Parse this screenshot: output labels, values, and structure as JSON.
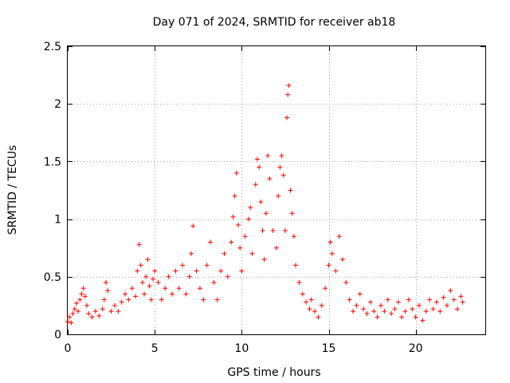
{
  "chart_data": {
    "type": "scatter",
    "title": "Day 071 of 2024, SRMTID for receiver ab18",
    "xlabel": "GPS time / hours",
    "ylabel": "SRMTID / TECUs",
    "xlim": [
      0,
      24
    ],
    "ylim": [
      0,
      2.5
    ],
    "xticks": [
      0,
      5,
      10,
      15,
      20
    ],
    "yticks": [
      0,
      0.5,
      1,
      1.5,
      2,
      2.5
    ],
    "xtick_labels": [
      "0",
      "5",
      "10",
      "15",
      "20"
    ],
    "ytick_labels": [
      "0",
      "0.5",
      "1",
      "1.5",
      "2",
      "2.5"
    ],
    "grid": true,
    "marker": "+",
    "series": [
      {
        "name": "SRMTID",
        "color": "#ff0000",
        "points": [
          [
            0.0,
            0.11
          ],
          [
            0.1,
            0.15
          ],
          [
            0.2,
            0.1
          ],
          [
            0.3,
            0.18
          ],
          [
            0.4,
            0.22
          ],
          [
            0.5,
            0.27
          ],
          [
            0.6,
            0.2
          ],
          [
            0.7,
            0.3
          ],
          [
            0.8,
            0.35
          ],
          [
            0.9,
            0.4
          ],
          [
            1.0,
            0.33
          ],
          [
            1.1,
            0.25
          ],
          [
            1.2,
            0.18
          ],
          [
            1.4,
            0.15
          ],
          [
            1.6,
            0.2
          ],
          [
            1.8,
            0.16
          ],
          [
            2.0,
            0.22
          ],
          [
            2.1,
            0.3
          ],
          [
            2.2,
            0.45
          ],
          [
            2.3,
            0.38
          ],
          [
            2.5,
            0.2
          ],
          [
            2.7,
            0.25
          ],
          [
            2.9,
            0.2
          ],
          [
            3.1,
            0.28
          ],
          [
            3.3,
            0.35
          ],
          [
            3.5,
            0.3
          ],
          [
            3.7,
            0.4
          ],
          [
            3.9,
            0.33
          ],
          [
            4.0,
            0.55
          ],
          [
            4.1,
            0.78
          ],
          [
            4.2,
            0.6
          ],
          [
            4.3,
            0.45
          ],
          [
            4.4,
            0.35
          ],
          [
            4.5,
            0.5
          ],
          [
            4.6,
            0.65
          ],
          [
            4.7,
            0.42
          ],
          [
            4.8,
            0.3
          ],
          [
            4.9,
            0.48
          ],
          [
            5.0,
            0.55
          ],
          [
            5.2,
            0.45
          ],
          [
            5.4,
            0.3
          ],
          [
            5.6,
            0.4
          ],
          [
            5.8,
            0.5
          ],
          [
            6.0,
            0.35
          ],
          [
            6.2,
            0.55
          ],
          [
            6.4,
            0.4
          ],
          [
            6.6,
            0.6
          ],
          [
            6.8,
            0.35
          ],
          [
            7.0,
            0.5
          ],
          [
            7.1,
            0.7
          ],
          [
            7.2,
            0.94
          ],
          [
            7.4,
            0.55
          ],
          [
            7.6,
            0.4
          ],
          [
            7.8,
            0.3
          ],
          [
            8.0,
            0.6
          ],
          [
            8.2,
            0.8
          ],
          [
            8.4,
            0.45
          ],
          [
            8.6,
            0.3
          ],
          [
            8.8,
            0.55
          ],
          [
            9.0,
            0.7
          ],
          [
            9.2,
            0.5
          ],
          [
            9.4,
            0.8
          ],
          [
            9.5,
            1.02
          ],
          [
            9.6,
            1.2
          ],
          [
            9.7,
            1.4
          ],
          [
            9.8,
            0.95
          ],
          [
            9.9,
            0.75
          ],
          [
            10.0,
            0.55
          ],
          [
            10.2,
            0.85
          ],
          [
            10.4,
            1.0
          ],
          [
            10.5,
            1.1
          ],
          [
            10.6,
            0.7
          ],
          [
            10.8,
            1.3
          ],
          [
            10.9,
            1.52
          ],
          [
            11.0,
            1.45
          ],
          [
            11.1,
            1.15
          ],
          [
            11.2,
            0.9
          ],
          [
            11.3,
            0.65
          ],
          [
            11.4,
            1.05
          ],
          [
            11.5,
            1.55
          ],
          [
            11.6,
            1.35
          ],
          [
            11.8,
            0.9
          ],
          [
            12.0,
            0.75
          ],
          [
            12.1,
            1.2
          ],
          [
            12.2,
            1.45
          ],
          [
            12.3,
            1.55
          ],
          [
            12.4,
            1.38
          ],
          [
            12.5,
            0.9
          ],
          [
            12.6,
            1.88
          ],
          [
            12.65,
            2.08
          ],
          [
            12.7,
            2.16
          ],
          [
            12.8,
            1.25
          ],
          [
            12.9,
            1.05
          ],
          [
            13.0,
            0.85
          ],
          [
            13.1,
            0.6
          ],
          [
            13.3,
            0.45
          ],
          [
            13.5,
            0.35
          ],
          [
            13.7,
            0.28
          ],
          [
            13.9,
            0.22
          ],
          [
            14.0,
            0.3
          ],
          [
            14.2,
            0.2
          ],
          [
            14.4,
            0.15
          ],
          [
            14.6,
            0.25
          ],
          [
            14.8,
            0.4
          ],
          [
            15.0,
            0.6
          ],
          [
            15.1,
            0.8
          ],
          [
            15.2,
            0.7
          ],
          [
            15.4,
            0.55
          ],
          [
            15.6,
            0.85
          ],
          [
            15.8,
            0.65
          ],
          [
            16.0,
            0.45
          ],
          [
            16.2,
            0.3
          ],
          [
            16.4,
            0.2
          ],
          [
            16.6,
            0.25
          ],
          [
            16.8,
            0.35
          ],
          [
            17.0,
            0.22
          ],
          [
            17.2,
            0.18
          ],
          [
            17.4,
            0.28
          ],
          [
            17.6,
            0.2
          ],
          [
            17.8,
            0.15
          ],
          [
            18.0,
            0.25
          ],
          [
            18.2,
            0.2
          ],
          [
            18.4,
            0.3
          ],
          [
            18.6,
            0.18
          ],
          [
            18.8,
            0.22
          ],
          [
            19.0,
            0.28
          ],
          [
            19.2,
            0.15
          ],
          [
            19.4,
            0.2
          ],
          [
            19.6,
            0.3
          ],
          [
            19.8,
            0.22
          ],
          [
            20.0,
            0.15
          ],
          [
            20.2,
            0.25
          ],
          [
            20.4,
            0.12
          ],
          [
            20.6,
            0.2
          ],
          [
            20.8,
            0.3
          ],
          [
            21.0,
            0.22
          ],
          [
            21.2,
            0.28
          ],
          [
            21.4,
            0.2
          ],
          [
            21.6,
            0.32
          ],
          [
            21.8,
            0.25
          ],
          [
            22.0,
            0.38
          ],
          [
            22.2,
            0.3
          ],
          [
            22.4,
            0.22
          ],
          [
            22.6,
            0.33
          ],
          [
            22.7,
            0.28
          ]
        ]
      }
    ]
  }
}
